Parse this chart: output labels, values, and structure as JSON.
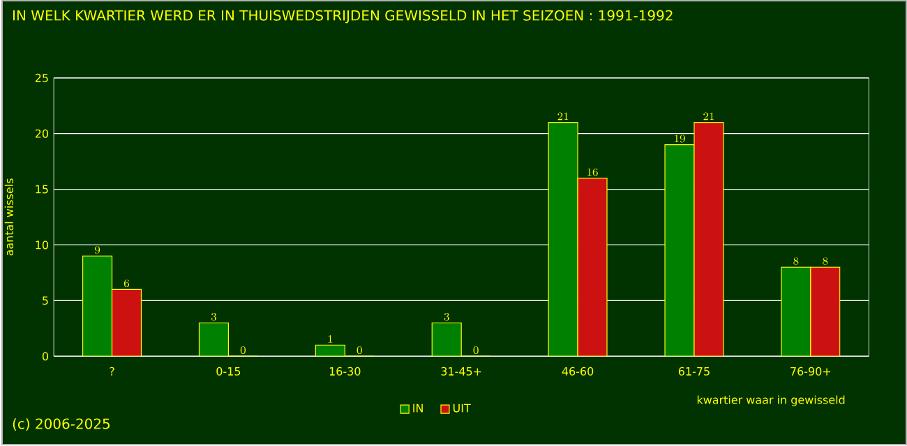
{
  "chart_data": {
    "type": "bar",
    "title": "IN WELK KWARTIER WERD ER IN THUISWEDSTRIJDEN GEWISSELD IN HET SEIZOEN : 1991-1992",
    "xlabel": "kwartier waar in gewisseld",
    "ylabel": "aantal wissels",
    "categories": [
      "?",
      "0-15",
      "16-30",
      "31-45+",
      "46-60",
      "61-75",
      "76-90+"
    ],
    "series": [
      {
        "name": "IN",
        "color": "#008000",
        "values": [
          9,
          3,
          1,
          3,
          21,
          19,
          8
        ]
      },
      {
        "name": "UIT",
        "color": "#cc1111",
        "values": [
          6,
          0,
          0,
          0,
          16,
          21,
          8
        ]
      }
    ],
    "ylim": [
      0,
      25
    ],
    "yticks": [
      0,
      5,
      10,
      15,
      20,
      25
    ],
    "grid": "y",
    "legend": "bottom",
    "data_labels": true,
    "annotations": [
      "(c) 2006-2025"
    ]
  }
}
